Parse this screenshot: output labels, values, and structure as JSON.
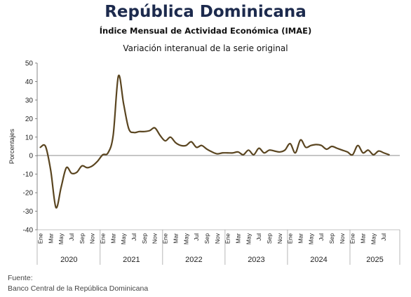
{
  "header": {
    "title": "República Dominicana",
    "subtitle": "Índice Mensual de Actividad Económica (IMAE)",
    "description": "Variación interanual de la serie original"
  },
  "footer": {
    "source_label": "Fuente:",
    "source_name": "Banco Central de la República Dominicana"
  },
  "colors": {
    "line": "#5a4520",
    "negative_tick": "#c00000",
    "title": "#1c2a4d"
  },
  "chart_data": {
    "type": "line",
    "title": "Variación interanual de la serie original",
    "ylabel": "Porcentajes",
    "xlabel": "",
    "ylim": [
      -40,
      50
    ],
    "yticks": [
      50,
      40,
      30,
      20,
      10,
      0,
      -10,
      -20,
      -30,
      -40
    ],
    "zero_line": true,
    "grid": false,
    "legend": "none",
    "month_tick_labels": [
      "Ene",
      "Mar",
      "May",
      "Jul",
      "Sep",
      "Nov"
    ],
    "year_labels": [
      "2020",
      "2021",
      "2022",
      "2023",
      "2024",
      "2025"
    ],
    "series": [
      {
        "name": "",
        "x": [
          "2020-01",
          "2020-02",
          "2020-03",
          "2020-04",
          "2020-05",
          "2020-06",
          "2020-07",
          "2020-08",
          "2020-09",
          "2020-10",
          "2020-11",
          "2020-12",
          "2021-01",
          "2021-02",
          "2021-03",
          "2021-04",
          "2021-05",
          "2021-06",
          "2021-07",
          "2021-08",
          "2021-09",
          "2021-10",
          "2021-11",
          "2021-12",
          "2022-01",
          "2022-02",
          "2022-03",
          "2022-04",
          "2022-05",
          "2022-06",
          "2022-07",
          "2022-08",
          "2022-09",
          "2022-10",
          "2022-11",
          "2022-12",
          "2023-01",
          "2023-02",
          "2023-03",
          "2023-04",
          "2023-05",
          "2023-06",
          "2023-07",
          "2023-08",
          "2023-09",
          "2023-10",
          "2023-11",
          "2023-12",
          "2024-01",
          "2024-02",
          "2024-03",
          "2024-04",
          "2024-05",
          "2024-06",
          "2024-07",
          "2024-08",
          "2024-09",
          "2024-10",
          "2024-11",
          "2024-12",
          "2025-01",
          "2025-02",
          "2025-03",
          "2025-04",
          "2025-05",
          "2025-06",
          "2025-07",
          "2025-08"
        ],
        "values": [
          4.5,
          5.0,
          -8.0,
          -28.0,
          -17.0,
          -6.5,
          -9.5,
          -9.0,
          -5.5,
          -6.5,
          -5.5,
          -3.0,
          0.5,
          1.5,
          11.0,
          43.0,
          28.0,
          14.5,
          12.5,
          13.0,
          13.0,
          13.5,
          15.0,
          11.0,
          8.0,
          10.0,
          7.0,
          5.5,
          5.5,
          7.5,
          4.5,
          5.5,
          3.5,
          2.0,
          1.0,
          1.5,
          1.5,
          1.5,
          2.0,
          0.5,
          3.0,
          0.5,
          4.0,
          1.5,
          3.0,
          2.5,
          2.0,
          3.0,
          6.5,
          1.5,
          8.5,
          4.5,
          5.5,
          6.0,
          5.5,
          3.5,
          5.0,
          4.0,
          3.0,
          2.0,
          0.5,
          5.5,
          1.5,
          3.0,
          0.5,
          2.5,
          1.5,
          0.5
        ]
      }
    ]
  }
}
